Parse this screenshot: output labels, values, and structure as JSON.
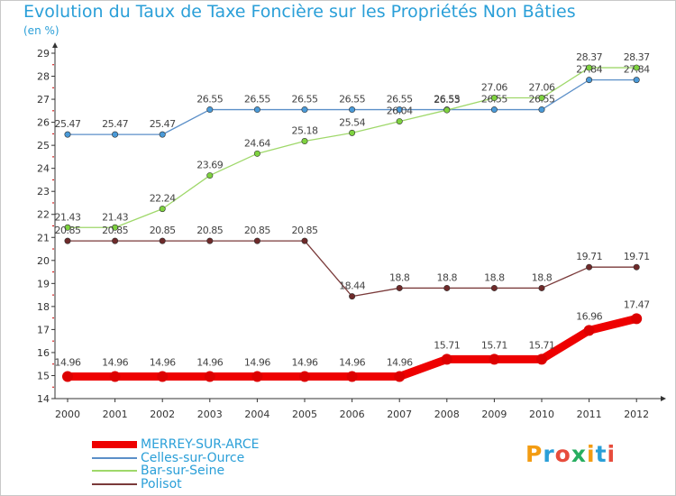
{
  "chart_data": {
    "type": "line",
    "title": "Evolution du Taux de Taxe Foncière sur les Propriétés Non Bâties",
    "unit_label": "(en %)",
    "xlabel": "",
    "ylabel": "",
    "x": [
      "2000",
      "2001",
      "2002",
      "2003",
      "2004",
      "2005",
      "2006",
      "2007",
      "2008",
      "2009",
      "2010",
      "2011",
      "2012"
    ],
    "y_ticks": [
      "14",
      "15",
      "16",
      "17",
      "18",
      "19",
      "20",
      "21",
      "22",
      "23",
      "24",
      "25",
      "26",
      "27",
      "28",
      "29"
    ],
    "ylim": [
      14,
      29
    ],
    "grid": false,
    "legend_position": "bottom-left",
    "series": [
      {
        "name": "Celles-sur-Ource",
        "color": "#5b8fc8",
        "fill": "#4a9ad8",
        "values": [
          25.47,
          25.47,
          25.47,
          26.55,
          26.55,
          26.55,
          26.55,
          26.55,
          26.55,
          26.55,
          26.55,
          27.84,
          27.84
        ],
        "labels": [
          "25.47",
          "25.47",
          "25.47",
          "26.55",
          "26.55",
          "26.55",
          "26.55",
          "26.55",
          "26.55",
          "26.55",
          "26.55",
          "27.84",
          "27.84"
        ]
      },
      {
        "name": "Bar-sur-Seine",
        "color": "#9fd86a",
        "fill": "#7ed23f",
        "values": [
          21.43,
          21.43,
          22.24,
          23.69,
          24.64,
          25.18,
          25.54,
          26.04,
          26.53,
          27.06,
          27.06,
          28.37,
          28.37
        ],
        "labels": [
          "21.43",
          "21.43",
          "22.24",
          "23.69",
          "24.64",
          "25.18",
          "25.54",
          "26.04",
          "26.53",
          "27.06",
          "27.06",
          "28.37",
          "28.37"
        ]
      },
      {
        "name": "Polisot",
        "color": "#7a3a3a",
        "fill": "#6e2a2a",
        "values": [
          20.85,
          20.85,
          20.85,
          20.85,
          20.85,
          20.85,
          18.44,
          18.8,
          18.8,
          18.8,
          18.8,
          19.71,
          19.71
        ],
        "labels": [
          "20.85",
          "20.85",
          "20.85",
          "20.85",
          "20.85",
          "20.85",
          "18.44",
          "18.8",
          "18.8",
          "18.8",
          "18.8",
          "19.71",
          "19.71"
        ]
      },
      {
        "name": "MERREY-SUR-ARCE",
        "color": "#ee0000",
        "fill": "#dd0000",
        "values": [
          14.96,
          14.96,
          14.96,
          14.96,
          14.96,
          14.96,
          14.96,
          14.96,
          15.71,
          15.71,
          15.71,
          16.96,
          17.47
        ],
        "labels": [
          "14.96",
          "14.96",
          "14.96",
          "14.96",
          "14.96",
          "14.96",
          "14.96",
          "14.96",
          "15.71",
          "15.71",
          "15.71",
          "16.96",
          "17.47"
        ]
      }
    ]
  },
  "legend": {
    "items": [
      {
        "label": "MERREY-SUR-ARCE",
        "color": "#ee0000",
        "style": "thick"
      },
      {
        "label": "Celles-sur-Ource",
        "color": "#5b8fc8",
        "style": "thin"
      },
      {
        "label": "Bar-sur-Seine",
        "color": "#9fd86a",
        "style": "thin"
      },
      {
        "label": "Polisot",
        "color": "#7a3a3a",
        "style": "thin"
      }
    ]
  },
  "brand": {
    "letters": [
      "P",
      "r",
      "o",
      "x",
      "i",
      "t",
      "i"
    ],
    "colors": [
      "#f39c12",
      "#2a9fd8",
      "#e74c3c",
      "#27ae60",
      "#f39c12",
      "#2a9fd8",
      "#e74c3c"
    ]
  },
  "colors": {
    "title": "#2a9fd8",
    "axis": "#333333",
    "frame": "#c8c8c8",
    "legend_text": "#2a9fd8"
  }
}
